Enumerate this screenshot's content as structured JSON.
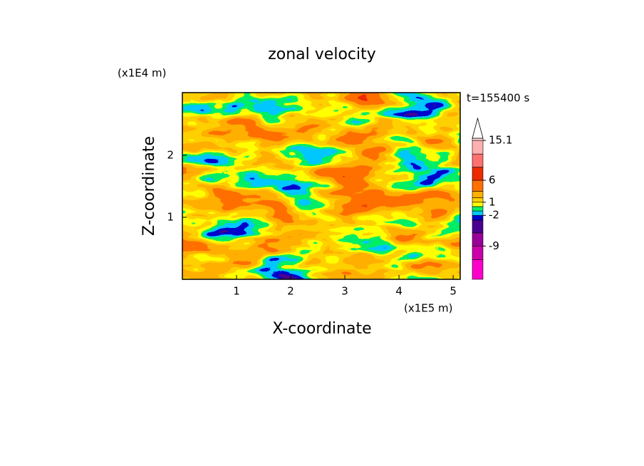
{
  "chart_data": {
    "type": "contour",
    "title": "zonal velocity",
    "x_label": "X-coordinate",
    "y_label": "Z-coordinate",
    "x_unit": "(x1E5 m)",
    "y_unit": "(x1E4 m)",
    "annotation": "t=155400 s",
    "xlim": [
      0,
      5.13
    ],
    "ylim": [
      0,
      3.01
    ],
    "xticks": [
      1,
      2,
      3,
      4,
      5
    ],
    "yticks": [
      1,
      2
    ],
    "colorbar": {
      "lim": [
        -16.6,
        15.6
      ],
      "levels": [
        -16.6,
        -12.1,
        -9,
        -6,
        -3.1,
        -2,
        -1,
        0,
        1,
        2,
        3.5,
        6,
        9,
        12,
        15.1,
        15.6
      ],
      "colors": [
        "#ff00cc",
        "#cc00aa",
        "#990099",
        "#4a0090",
        "#0000cc",
        "#00c8ff",
        "#00ee66",
        "#ffff00",
        "#ffd000",
        "#ffb000",
        "#ff7000",
        "#ee2a00",
        "#ff7070",
        "#ffb0b0",
        "#ffd8d8"
      ],
      "ticks": [
        15.1,
        6,
        1,
        -2,
        -9
      ]
    }
  }
}
